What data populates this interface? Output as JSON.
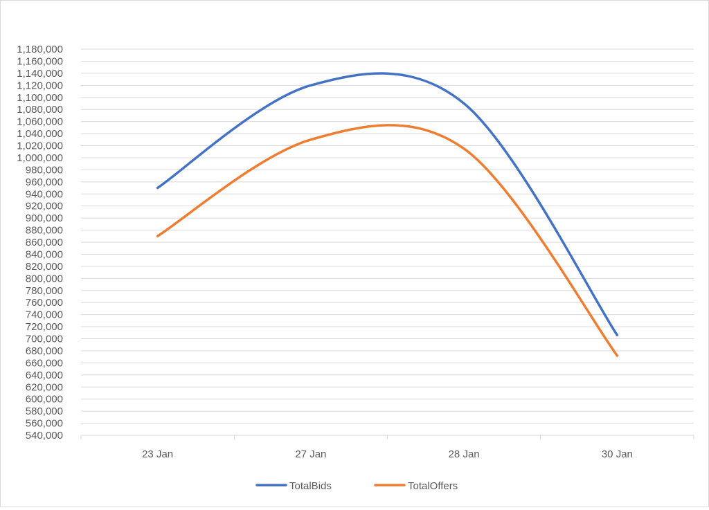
{
  "chart_data": {
    "type": "line",
    "smooth": true,
    "categories": [
      "23 Jan",
      "27 Jan",
      "28 Jan",
      "30 Jan"
    ],
    "series": [
      {
        "name": "TotalBids",
        "color": "#4472c4",
        "values": [
          950000,
          1120000,
          1090000,
          706000
        ]
      },
      {
        "name": "TotalOffers",
        "color": "#ed7d31",
        "values": [
          870000,
          1030000,
          1015000,
          672000
        ]
      }
    ],
    "ylim": [
      540000,
      1180000
    ],
    "ytick_step": 20000,
    "grid": true,
    "legend": "bottom"
  }
}
